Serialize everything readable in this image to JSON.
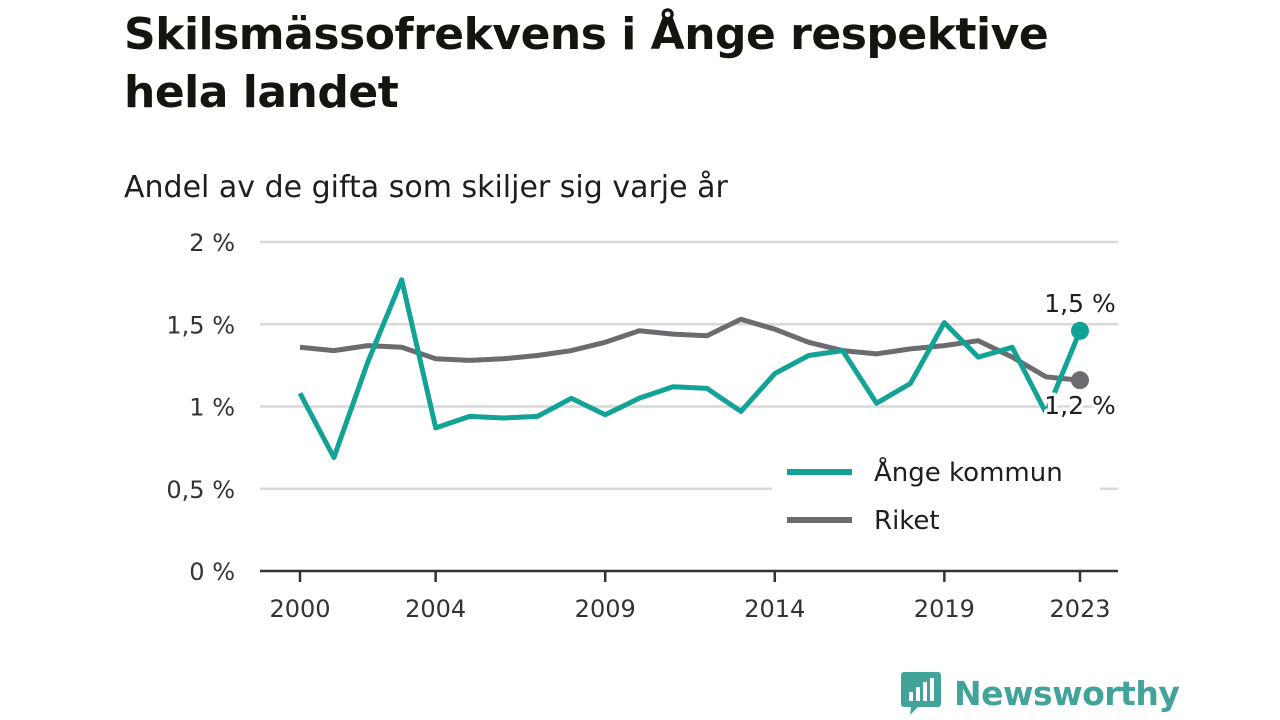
{
  "title": "Skilsmässofrekvens i Ånge respektive hela landet",
  "subtitle": "Andel av de gifta som skiljer sig varje år",
  "brand": "Newsworthy",
  "colors": {
    "ange": "#12a396",
    "riket": "#6c6b70",
    "grid": "#d9d9d9",
    "axis": "#333333",
    "brand": "#42a39a"
  },
  "chart_data": {
    "type": "line",
    "x": [
      2000,
      2001,
      2002,
      2003,
      2004,
      2005,
      2006,
      2007,
      2008,
      2009,
      2010,
      2011,
      2012,
      2013,
      2014,
      2015,
      2016,
      2017,
      2018,
      2019,
      2020,
      2021,
      2022,
      2023
    ],
    "x_ticks": [
      "2000",
      "2004",
      "2009",
      "2014",
      "2019",
      "2023"
    ],
    "y_ticks": [
      "0 %",
      "0,5 %",
      "1 %",
      "1,5 %",
      "2 %"
    ],
    "ylim": [
      0,
      2
    ],
    "grid": true,
    "legend_position": "bottom-right",
    "series": [
      {
        "name": "Ånge kommun",
        "color": "#12a396",
        "values": [
          1.08,
          0.69,
          1.27,
          1.77,
          0.87,
          0.94,
          0.93,
          0.94,
          1.05,
          0.95,
          1.05,
          1.12,
          1.11,
          0.97,
          1.2,
          1.31,
          1.34,
          1.02,
          1.14,
          1.51,
          1.3,
          1.36,
          0.96,
          1.46
        ],
        "end_label": "1,5 %"
      },
      {
        "name": "Riket",
        "color": "#6c6b70",
        "values": [
          1.36,
          1.34,
          1.37,
          1.36,
          1.29,
          1.28,
          1.29,
          1.31,
          1.34,
          1.39,
          1.46,
          1.44,
          1.43,
          1.53,
          1.47,
          1.39,
          1.34,
          1.32,
          1.35,
          1.37,
          1.4,
          1.3,
          1.18,
          1.16
        ],
        "end_label": "1,2 %"
      }
    ]
  }
}
